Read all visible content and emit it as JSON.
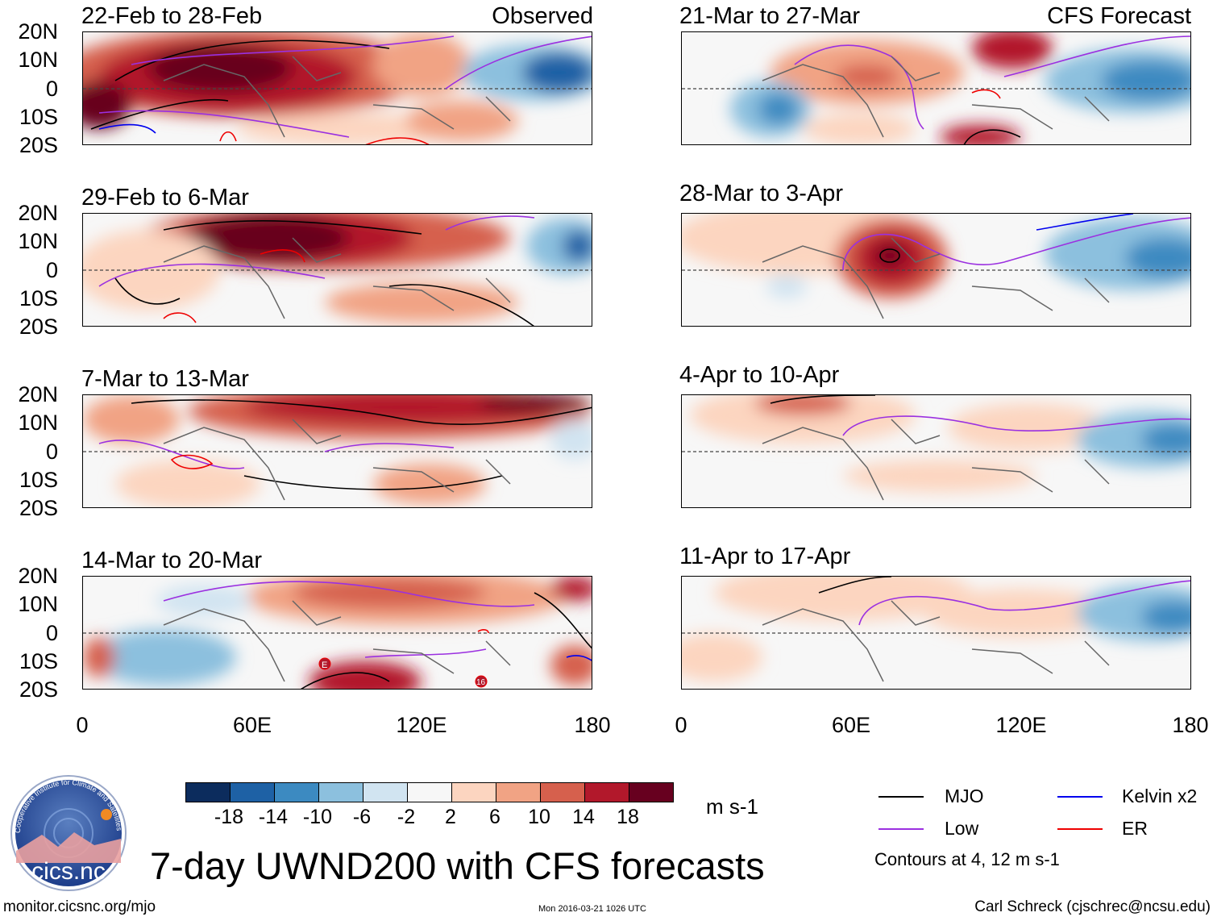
{
  "panels": {
    "observed_label": "Observed",
    "forecast_label": "CFS Forecast",
    "observed": [
      {
        "title": "22-Feb to 28-Feb"
      },
      {
        "title": "29-Feb to 6-Mar"
      },
      {
        "title": "7-Mar to 13-Mar"
      },
      {
        "title": "14-Mar to 20-Mar"
      }
    ],
    "forecast": [
      {
        "title": "21-Mar to 27-Mar"
      },
      {
        "title": "28-Mar to 3-Apr"
      },
      {
        "title": "4-Apr to 10-Apr"
      },
      {
        "title": "11-Apr to 17-Apr"
      }
    ]
  },
  "axes": {
    "lat_labels": [
      "20N",
      "10N",
      "0",
      "10S",
      "20S"
    ],
    "lon_labels": [
      "0",
      "60E",
      "120E",
      "180"
    ]
  },
  "markers": {
    "e_marker": "E",
    "sixteen_marker": "16"
  },
  "colorbar": {
    "colors": [
      "#0c2c5d",
      "#1e61a5",
      "#3c8ac1",
      "#8cc0de",
      "#d1e4f1",
      "#f7f7f7",
      "#fcd5c0",
      "#f1a384",
      "#d6604d",
      "#b2182b",
      "#67001f"
    ],
    "labels": [
      "-18",
      "-14",
      "-10",
      "-6",
      "-2",
      "2",
      "6",
      "10",
      "14",
      "18"
    ],
    "units": "m s-1"
  },
  "legend": {
    "mjo": {
      "label": "MJO",
      "color": "#000000"
    },
    "kelvin": {
      "label": "Kelvin x2",
      "color": "#0000ee"
    },
    "low": {
      "label": "Low",
      "color": "#9b30e0"
    },
    "er": {
      "label": "ER",
      "color": "#ee0000"
    },
    "contours_note": "Contours at 4, 12 m s-1"
  },
  "logo": {
    "name": "cics.nc",
    "ring_text": "Cooperative Institute for Climate and Satellites"
  },
  "title": "7-day UWND200 with CFS forecasts",
  "footer": {
    "url": "monitor.cicsnc.org/mjo",
    "timestamp": "Mon 2016-03-21 1026 UTC",
    "author": "Carl Schreck (cjschrec@ncsu.edu)"
  }
}
